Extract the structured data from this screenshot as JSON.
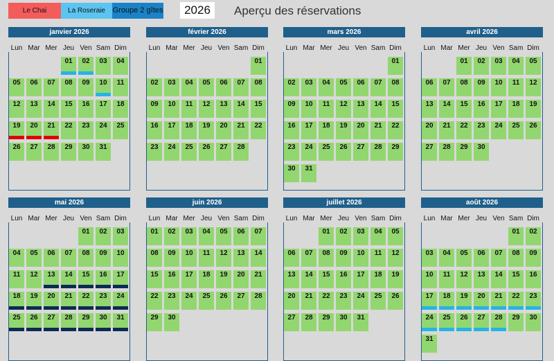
{
  "legend": [
    {
      "label": "Le Chai",
      "color": "#f45b5b"
    },
    {
      "label": "La Roseraie",
      "color": "#5cc4f0"
    },
    {
      "label": "Groupe 2 gîtes",
      "color": "#1a82c8"
    }
  ],
  "year": "2026",
  "title": "Aperçu des réservations",
  "weekdays": [
    "Lun",
    "Mar",
    "Mer",
    "Jeu",
    "Ven",
    "Sam",
    "Dim"
  ],
  "booking_colors": {
    "red": "#e00000",
    "cyan": "#24b4e6",
    "navy": "#0b2a55"
  },
  "months": [
    {
      "name": "janvier 2026",
      "first_weekday": 3,
      "days": 31,
      "bookings": [
        {
          "day": 1,
          "type": "cyan"
        },
        {
          "day": 2,
          "type": "cyan"
        },
        {
          "day": 10,
          "type": "cyan"
        },
        {
          "day": 19,
          "type": "red"
        },
        {
          "day": 20,
          "type": "red"
        },
        {
          "day": 21,
          "type": "red"
        }
      ]
    },
    {
      "name": "février 2026",
      "first_weekday": 6,
      "days": 28,
      "bookings": []
    },
    {
      "name": "mars 2026",
      "first_weekday": 6,
      "days": 31,
      "bookings": []
    },
    {
      "name": "avril 2026",
      "first_weekday": 2,
      "days": 30,
      "bookings": []
    },
    {
      "name": "mai 2026",
      "first_weekday": 4,
      "days": 31,
      "bookings": [
        {
          "day": 13,
          "type": "navy"
        },
        {
          "day": 14,
          "type": "navy"
        },
        {
          "day": 15,
          "type": "navy"
        },
        {
          "day": 16,
          "type": "navy"
        },
        {
          "day": 17,
          "type": "navy"
        },
        {
          "day": 18,
          "type": "navy"
        },
        {
          "day": 19,
          "type": "navy"
        },
        {
          "day": 20,
          "type": "navy"
        },
        {
          "day": 21,
          "type": "navy"
        },
        {
          "day": 22,
          "type": "navy"
        },
        {
          "day": 23,
          "type": "navy"
        },
        {
          "day": 24,
          "type": "navy"
        },
        {
          "day": 25,
          "type": "navy"
        },
        {
          "day": 26,
          "type": "navy"
        },
        {
          "day": 27,
          "type": "navy"
        },
        {
          "day": 28,
          "type": "navy"
        },
        {
          "day": 29,
          "type": "navy"
        },
        {
          "day": 30,
          "type": "navy"
        },
        {
          "day": 31,
          "type": "navy"
        }
      ]
    },
    {
      "name": "juin 2026",
      "first_weekday": 0,
      "days": 30,
      "bookings": []
    },
    {
      "name": "juillet 2026",
      "first_weekday": 2,
      "days": 31,
      "bookings": []
    },
    {
      "name": "août 2026",
      "first_weekday": 5,
      "days": 31,
      "bookings": [
        {
          "day": 17,
          "type": "cyan"
        },
        {
          "day": 18,
          "type": "cyan"
        },
        {
          "day": 19,
          "type": "cyan"
        },
        {
          "day": 20,
          "type": "cyan"
        },
        {
          "day": 21,
          "type": "cyan"
        },
        {
          "day": 22,
          "type": "cyan"
        },
        {
          "day": 23,
          "type": "cyan"
        },
        {
          "day": 24,
          "type": "cyan"
        },
        {
          "day": 25,
          "type": "cyan"
        },
        {
          "day": 26,
          "type": "cyan"
        },
        {
          "day": 27,
          "type": "cyan"
        },
        {
          "day": 28,
          "type": "cyan"
        }
      ]
    }
  ]
}
